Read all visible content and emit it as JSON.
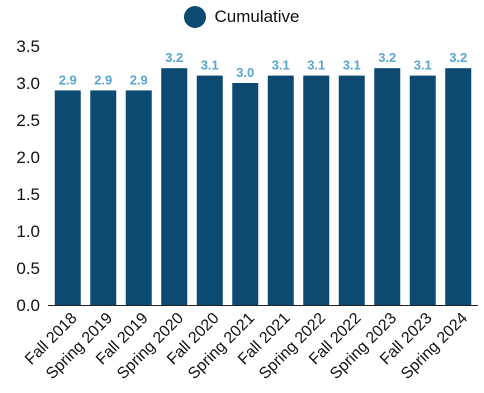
{
  "chart_data": {
    "type": "bar",
    "categories": [
      "Fall 2018",
      "Spring 2019",
      "Fall 2019",
      "Spring 2020",
      "Fall 2020",
      "Spring 2021",
      "Fall 2021",
      "Spring 2022",
      "Fall 2022",
      "Spring 2023",
      "Fall 2023",
      "Spring 2024"
    ],
    "series": [
      {
        "name": "Cumulative",
        "values": [
          2.9,
          2.9,
          2.9,
          3.2,
          3.1,
          3.0,
          3.1,
          3.1,
          3.1,
          3.2,
          3.1,
          3.2
        ],
        "data_labels": [
          "2.9",
          "2.9",
          "2.9",
          "3.2",
          "3.1",
          "3.0",
          "3.1",
          "3.1",
          "3.1",
          "3.2",
          "3.1",
          "3.2"
        ]
      }
    ],
    "yticks": [
      "0.0",
      "0.5",
      "1.0",
      "1.5",
      "2.0",
      "2.5",
      "3.0",
      "3.5"
    ],
    "ylim": [
      0,
      3.5
    ],
    "legend_position": "top-center",
    "grid": false
  },
  "colors": {
    "bar": "#0d4a72",
    "data_label": "#5aa6cc",
    "axis_text": "#111111",
    "axis_line": "#222222"
  }
}
